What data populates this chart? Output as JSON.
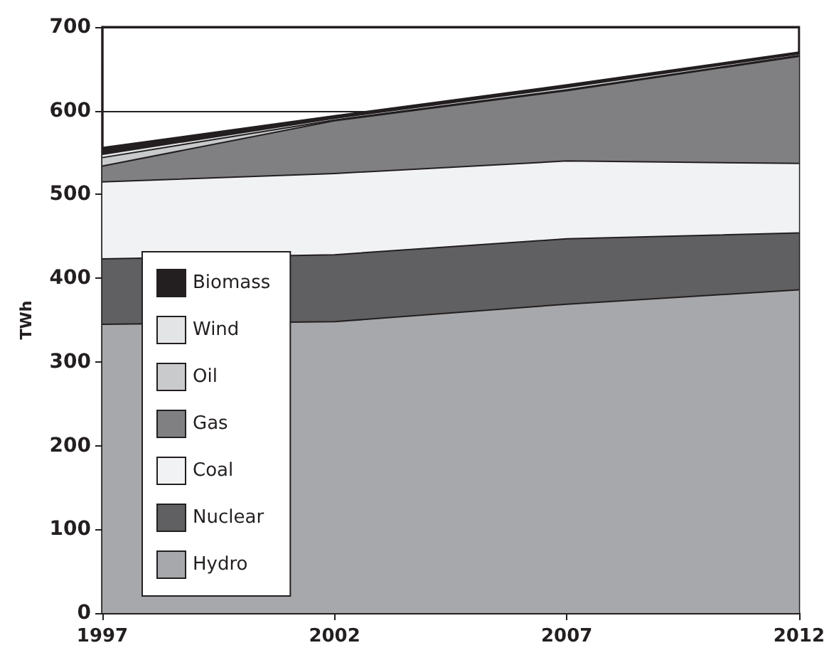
{
  "chart_data": {
    "type": "area",
    "stacked": true,
    "ylabel": "TWh",
    "categories": [
      "1997",
      "2002",
      "2007",
      "2012"
    ],
    "ylim": [
      0,
      700
    ],
    "yticks": [
      0,
      100,
      200,
      300,
      400,
      500,
      600,
      700
    ],
    "grid": "y",
    "legend": "bottom left",
    "marker": "none",
    "series": [
      {
        "name": "Hydro",
        "color": "#a7a8ab",
        "values": [
          345,
          348,
          369,
          386
        ]
      },
      {
        "name": "Nuclear",
        "color": "#606062",
        "values": [
          78,
          80,
          78,
          68
        ]
      },
      {
        "name": "Coal",
        "color": "#f1f2f4",
        "values": [
          92,
          97,
          93,
          83
        ]
      },
      {
        "name": "Gas",
        "color": "#808083",
        "values": [
          19,
          63,
          84,
          128
        ]
      },
      {
        "name": "Oil",
        "color": "#c9cacc",
        "values": [
          10,
          1,
          1,
          1
        ]
      },
      {
        "name": "Wind",
        "color": "#e3e4e6",
        "values": [
          4,
          2,
          3,
          2
        ]
      },
      {
        "name": "Biomass",
        "color": "#231f20",
        "values": [
          8,
          3,
          3,
          2
        ]
      }
    ]
  }
}
